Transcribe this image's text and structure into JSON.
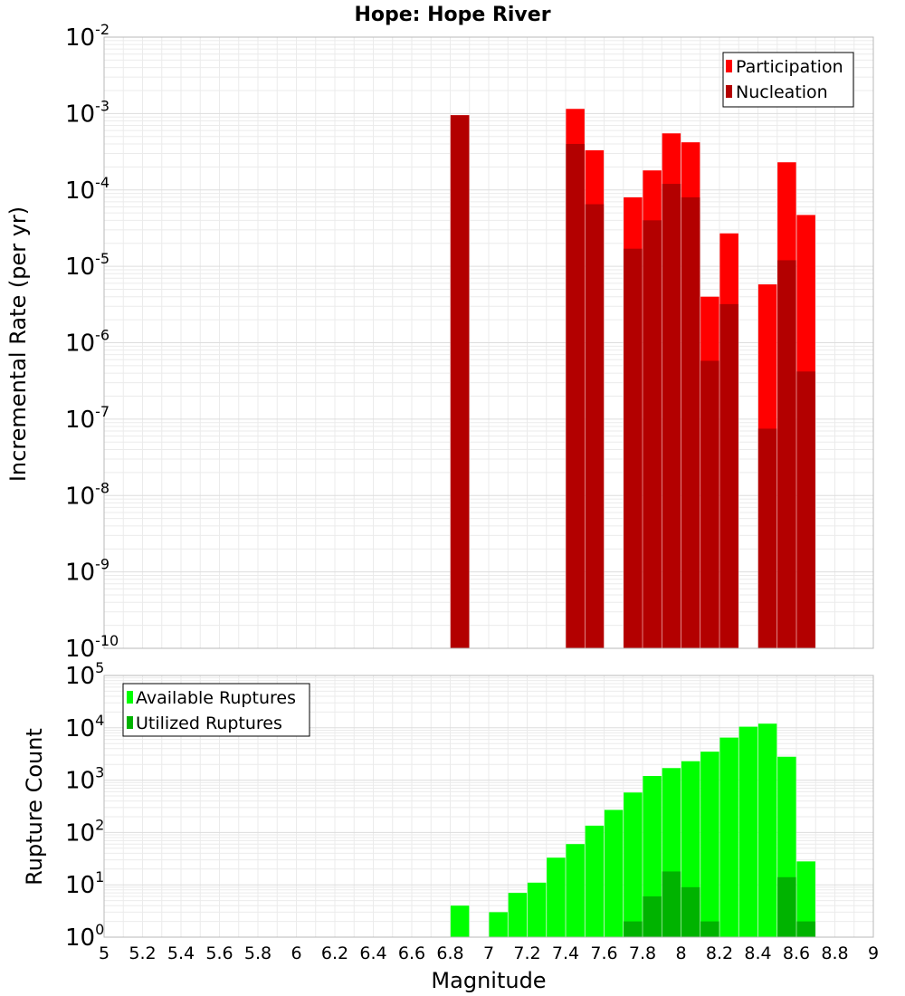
{
  "chart_data": [
    {
      "type": "bar",
      "title": "Hope: Hope River",
      "xlabel": "",
      "ylabel": "Incremental Rate (per yr)",
      "yscale": "log",
      "ylim_exp": [
        -10,
        -2
      ],
      "xlim": [
        5,
        9
      ],
      "grid": true,
      "legend_position": "top-right",
      "series": [
        {
          "name": "Participation",
          "color": "#ff0000",
          "x": [
            6.85,
            7.45,
            7.55,
            7.75,
            7.85,
            7.95,
            8.05,
            8.15,
            8.25,
            8.45,
            8.55,
            8.65
          ],
          "values": [
            0.00095,
            0.00115,
            0.00033,
            8e-05,
            0.00018,
            0.00055,
            0.00042,
            4e-06,
            2.7e-05,
            5.8e-06,
            0.00023,
            4.7e-05
          ]
        },
        {
          "name": "Nucleation",
          "color": "#b30000",
          "x": [
            6.85,
            7.45,
            7.55,
            7.75,
            7.85,
            7.95,
            8.05,
            8.15,
            8.25,
            8.45,
            8.55,
            8.65
          ],
          "values": [
            0.00095,
            0.0004,
            6.5e-05,
            1.7e-05,
            4e-05,
            0.00012,
            8e-05,
            5.8e-07,
            3.2e-06,
            7.5e-08,
            1.2e-05,
            4.2e-07
          ]
        }
      ]
    },
    {
      "type": "bar",
      "title": "",
      "xlabel": "Magnitude",
      "ylabel": "Rupture Count",
      "yscale": "log",
      "ylim_exp": [
        0,
        5
      ],
      "xlim": [
        5,
        9
      ],
      "grid": true,
      "legend_position": "top-left",
      "x_ticks": [
        "5",
        "5.2",
        "5.4",
        "5.6",
        "5.8",
        "6",
        "6.2",
        "6.4",
        "6.6",
        "6.8",
        "7",
        "7.2",
        "7.4",
        "7.6",
        "7.8",
        "8",
        "8.2",
        "8.4",
        "8.6",
        "8.8",
        "9"
      ],
      "series": [
        {
          "name": "Available Ruptures",
          "color": "#00ff00",
          "x": [
            6.85,
            6.95,
            7.05,
            7.15,
            7.25,
            7.35,
            7.45,
            7.55,
            7.65,
            7.75,
            7.85,
            7.95,
            8.05,
            8.15,
            8.25,
            8.35,
            8.45,
            8.55,
            8.65
          ],
          "values": [
            4,
            1,
            3,
            7,
            11,
            33,
            60,
            135,
            270,
            580,
            1200,
            1700,
            2300,
            3500,
            6500,
            10500,
            12000,
            2800,
            28
          ]
        },
        {
          "name": "Utilized Ruptures",
          "color": "#00b300",
          "x": [
            6.85,
            7.45,
            7.55,
            7.75,
            7.85,
            7.95,
            8.05,
            8.15,
            8.25,
            8.35,
            8.45,
            8.55,
            8.65
          ],
          "values": [
            1,
            1,
            1,
            2,
            6,
            18,
            9,
            2,
            1,
            1,
            1,
            14,
            2
          ]
        }
      ]
    }
  ]
}
